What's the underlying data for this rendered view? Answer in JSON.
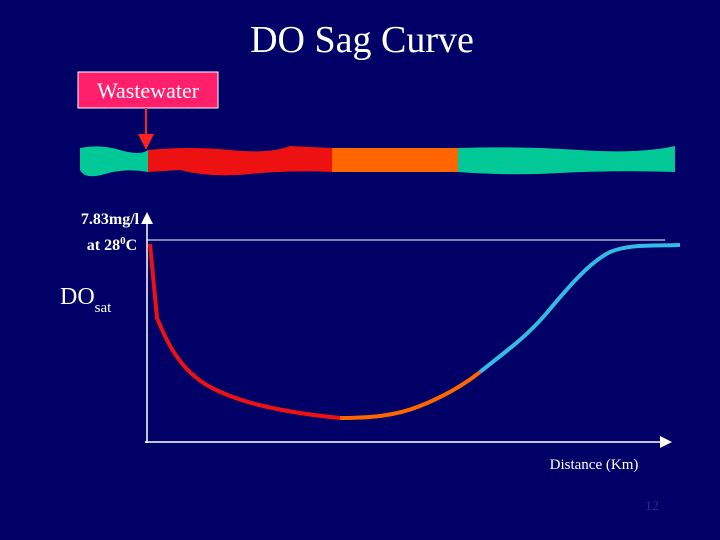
{
  "title": "DO Sag Curve",
  "source_label": "Wastewater",
  "saturation": {
    "line1": "7.83mg/l",
    "line2": [
      "at 28",
      "0",
      "C"
    ]
  },
  "y_label": [
    "DO",
    "sat"
  ],
  "x_label": "Distance (Km)",
  "page_number": "12"
}
